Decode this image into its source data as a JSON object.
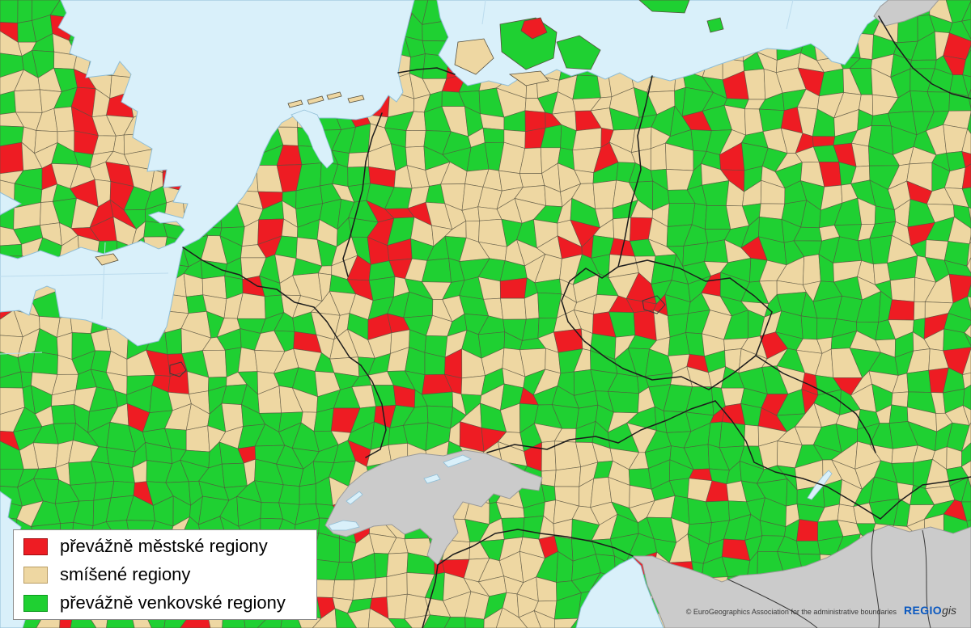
{
  "legend": {
    "items": [
      {
        "id": "urban",
        "label": "převážně městské regiony",
        "color": "#ee1c23",
        "border": "#9e0c10"
      },
      {
        "id": "mixed",
        "label": "smíšené regiony",
        "color": "#eed7a2",
        "border": "#b99c63"
      },
      {
        "id": "rural",
        "label": "převážně venkovské regiony",
        "color": "#1fd032",
        "border": "#0c9a1e"
      }
    ]
  },
  "attribution": {
    "text": "© EuroGeographics Association for the administrative boundaries"
  },
  "logo": {
    "regio": "REGIO",
    "gis": "gis",
    "regio_color": "#0a58c0",
    "gis_color": "#333333"
  },
  "map": {
    "colors": {
      "sea": "#d9f0fa",
      "coastline": "#8fbdd6",
      "urban": "#ee1c23",
      "mixed": "#eed7a2",
      "rural": "#1fd032",
      "unclassified": "#cbcbcb",
      "unclassified_border": "#9a9a9a",
      "lake": "#d9f0fa",
      "region_border": "#56503e",
      "national_border": "#1c1c1c",
      "graticule": "#bcdcee"
    }
  }
}
